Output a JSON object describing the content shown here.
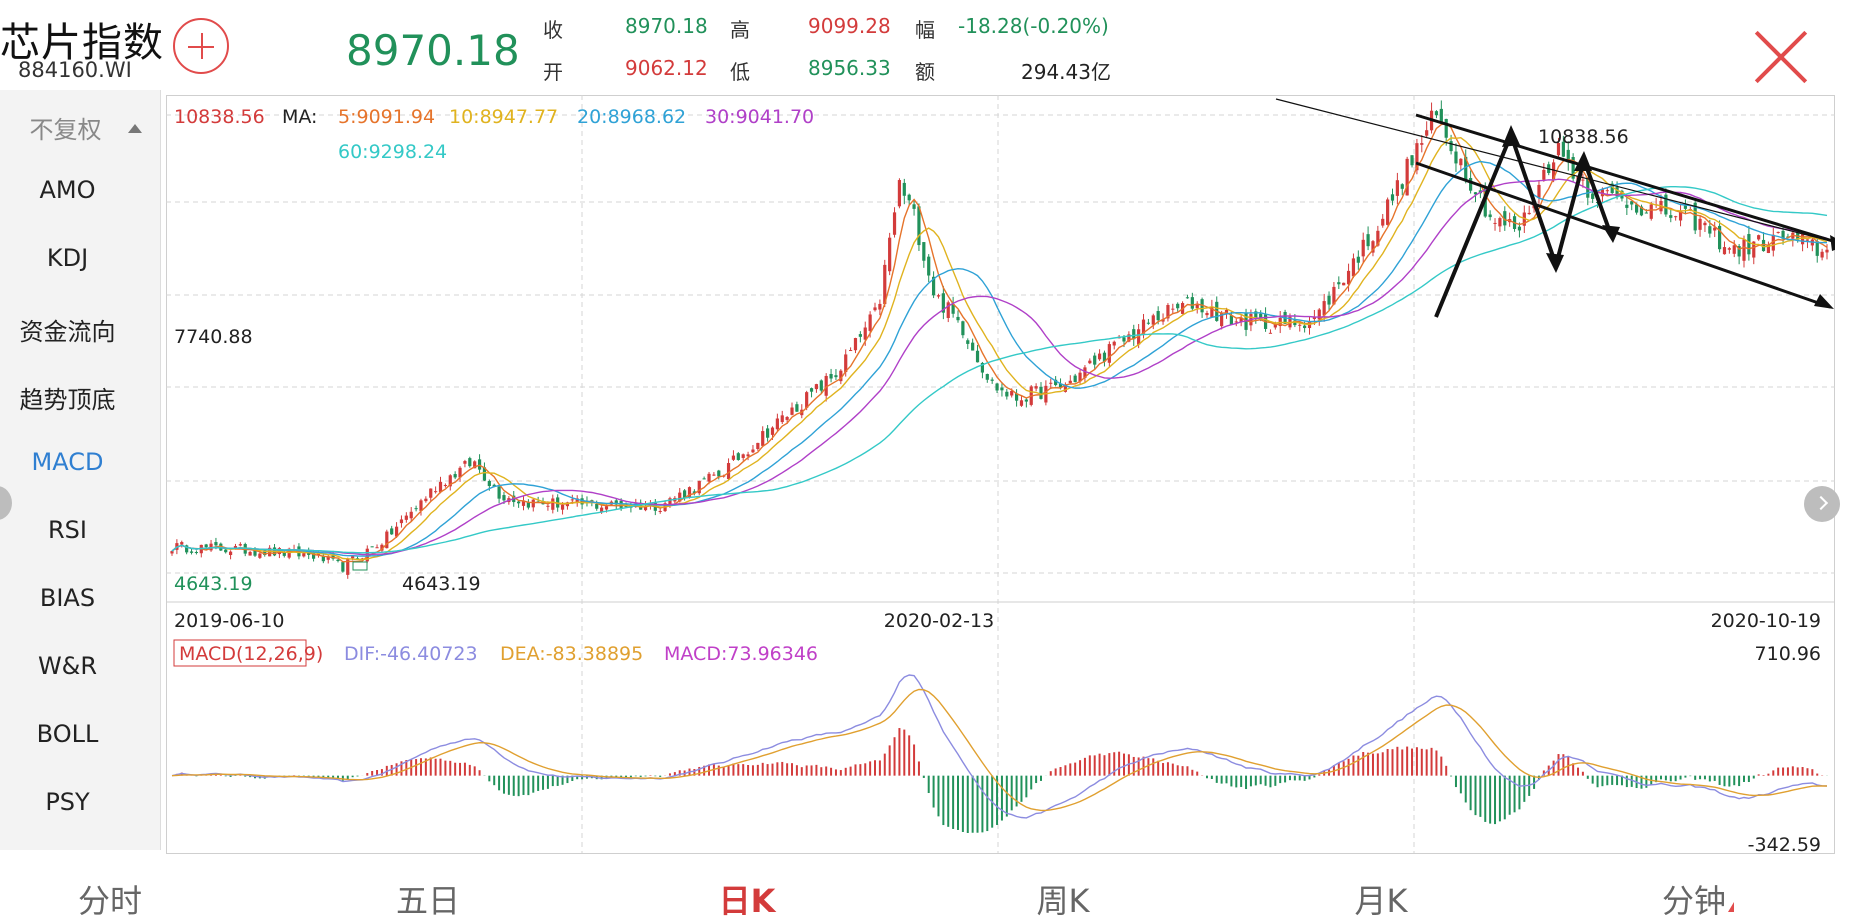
{
  "header": {
    "title": "芯片指数",
    "code": "884160.WI",
    "price": "8970.18",
    "quote": {
      "close_label": "收",
      "close": "8970.18",
      "high_label": "高",
      "high": "9099.28",
      "change_label": "幅",
      "change": "-18.28(-0.20%)",
      "open_label": "开",
      "open": "9062.12",
      "low_label": "低",
      "low": "8956.33",
      "amount_label": "额",
      "amount": "294.43亿"
    }
  },
  "sidebar": {
    "items": [
      "不复权",
      "AMO",
      "KDJ",
      "资金流向",
      "趋势顶底",
      "MACD",
      "RSI",
      "BIAS",
      "W&R",
      "BOLL",
      "PSY"
    ],
    "active": "MACD"
  },
  "main_chart": {
    "max_label": "10838.56",
    "ma_prefix": "MA:",
    "ma": [
      {
        "label": "5:9091.94",
        "color": "#e6742b"
      },
      {
        "label": "10:8947.77",
        "color": "#e0b31f"
      },
      {
        "label": "20:8968.62",
        "color": "#2fa2d6"
      },
      {
        "label": "30:9041.70",
        "color": "#b040c8"
      },
      {
        "label": "60:9298.24",
        "color": "#34c9c7"
      }
    ],
    "mid_label": "7740.88",
    "min_label": "4643.19",
    "low_marker": "4643.19",
    "high_marker": "10838.56",
    "dates": [
      "2019-06-10",
      "2020-02-13",
      "2020-10-19"
    ],
    "up_color": "#d33b3b",
    "down_color": "#21915a"
  },
  "macd": {
    "title": "MACD(12,26,9)",
    "dif": "DIF:-46.40723",
    "dea": "DEA:-83.38895",
    "macd": "MACD:73.96346",
    "max_label": "710.96",
    "min_label": "-342.59"
  },
  "chart_data": {
    "type": "candlestick",
    "title": "芯片指数",
    "x_range": [
      "2019-06-10",
      "2020-10-19"
    ],
    "x_ticks": [
      "2019-06-10",
      "2020-02-13",
      "2020-10-19"
    ],
    "y_labels": [
      "10838.56",
      "7740.88",
      "4643.19"
    ],
    "ylim": [
      4643.19,
      10838.56
    ],
    "series": [
      {
        "name": "MA5",
        "last": 9091.94
      },
      {
        "name": "MA10",
        "last": 8947.77
      },
      {
        "name": "MA20",
        "last": 8968.62
      },
      {
        "name": "MA30",
        "last": 9041.7
      },
      {
        "name": "MA60",
        "last": 9298.24
      }
    ],
    "close_path": [
      [
        0,
        5000
      ],
      [
        40,
        4960
      ],
      [
        80,
        4880
      ],
      [
        96,
        4720
      ],
      [
        120,
        5100
      ],
      [
        150,
        5850
      ],
      [
        170,
        6150
      ],
      [
        185,
        5700
      ],
      [
        200,
        5600
      ],
      [
        240,
        5560
      ],
      [
        275,
        5560
      ],
      [
        310,
        6000
      ],
      [
        335,
        6550
      ],
      [
        355,
        6950
      ],
      [
        375,
        7350
      ],
      [
        398,
        8200
      ],
      [
        410,
        9900
      ],
      [
        418,
        9500
      ],
      [
        430,
        8400
      ],
      [
        445,
        8000
      ],
      [
        462,
        7200
      ],
      [
        475,
        7000
      ],
      [
        505,
        7200
      ],
      [
        525,
        7600
      ],
      [
        555,
        8100
      ],
      [
        575,
        8300
      ],
      [
        600,
        8050
      ],
      [
        625,
        8000
      ],
      [
        645,
        8100
      ],
      [
        680,
        9350
      ],
      [
        712,
        10838.56
      ],
      [
        745,
        9400
      ],
      [
        760,
        9300
      ],
      [
        780,
        10400
      ],
      [
        800,
        9800
      ],
      [
        830,
        9600
      ],
      [
        860,
        9400
      ],
      [
        880,
        9000
      ],
      [
        910,
        9200
      ],
      [
        933,
        8970.18
      ]
    ],
    "macd": {
      "dif": -46.40723,
      "dea": -83.38895,
      "macd": 73.96346,
      "ylim": [
        -342.59,
        710.96
      ]
    }
  },
  "tabs": {
    "items": [
      "分时",
      "五日",
      "日K",
      "周K",
      "月K",
      "分钟"
    ],
    "active": "日K"
  }
}
